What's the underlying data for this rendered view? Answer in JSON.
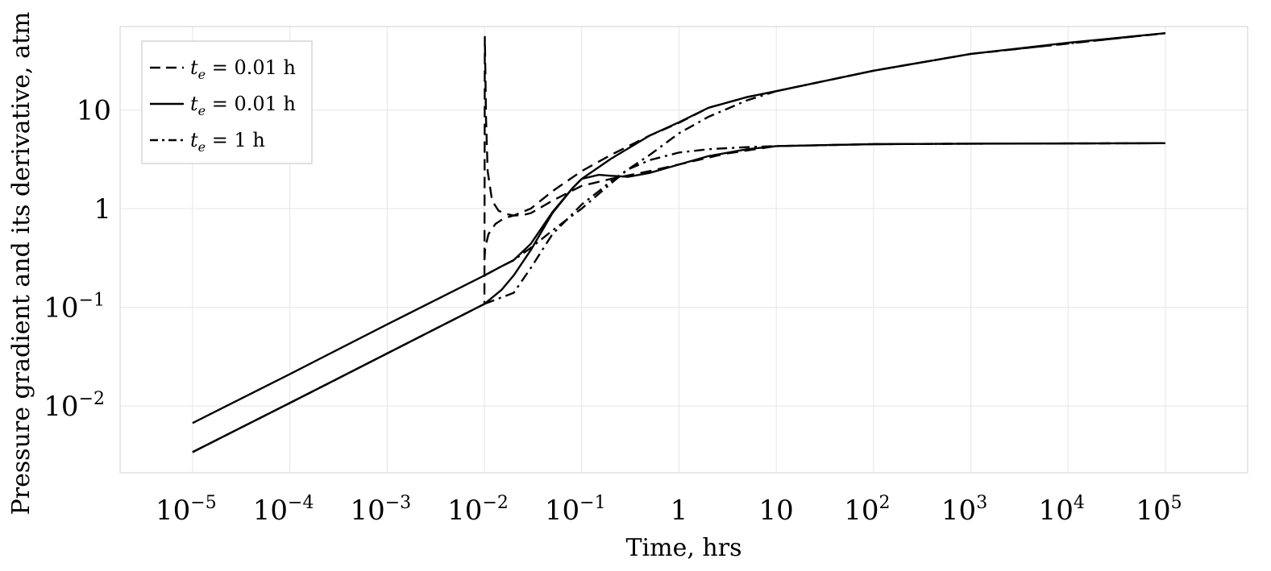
{
  "chart_data": {
    "type": "line",
    "xlabel": "Time, hrs",
    "ylabel": "Pressure gradient and its derivative, atm",
    "x_scale": "log",
    "y_scale": "log",
    "xlim": [
      1.8e-06,
      700000.0
    ],
    "ylim": [
      0.0021,
      70
    ],
    "grid": true,
    "legend_position": "top-left",
    "x_ticks": [
      {
        "value": 1e-05,
        "base": "10",
        "exp": "−5"
      },
      {
        "value": 0.0001,
        "base": "10",
        "exp": "−4"
      },
      {
        "value": 0.001,
        "base": "10",
        "exp": "−3"
      },
      {
        "value": 0.01,
        "base": "10",
        "exp": "−2"
      },
      {
        "value": 0.1,
        "base": "10",
        "exp": "−1"
      },
      {
        "value": 1,
        "base": "1",
        "exp": ""
      },
      {
        "value": 10,
        "base": "10",
        "exp": ""
      },
      {
        "value": 100,
        "base": "10",
        "exp": "2"
      },
      {
        "value": 1000,
        "base": "10",
        "exp": "3"
      },
      {
        "value": 10000,
        "base": "10",
        "exp": "4"
      },
      {
        "value": 100000,
        "base": "10",
        "exp": "5"
      }
    ],
    "y_ticks": [
      {
        "value": 0.01,
        "base": "10",
        "exp": "−2"
      },
      {
        "value": 0.1,
        "base": "10",
        "exp": "−1"
      },
      {
        "value": 1,
        "base": "1",
        "exp": ""
      },
      {
        "value": 10,
        "base": "10",
        "exp": ""
      }
    ],
    "legend": [
      {
        "style": "dashed",
        "prefix": "t",
        "sub": "e",
        "suffix": " = 0.01 h"
      },
      {
        "style": "solid",
        "prefix": "t",
        "sub": "e",
        "suffix": " = 0.01 h"
      },
      {
        "style": "dashdot",
        "prefix": "t",
        "sub": "e",
        "suffix": " = 1 h"
      }
    ],
    "series": [
      {
        "style": "solid",
        "x": [
          1e-05,
          0.0001,
          0.001,
          0.01,
          0.015,
          0.02,
          0.03,
          0.05,
          0.08,
          0.1,
          0.2,
          0.5,
          1,
          2,
          5,
          10,
          100,
          1000,
          10000,
          100000
        ],
        "y": [
          0.0067,
          0.021,
          0.067,
          0.21,
          0.26,
          0.3,
          0.44,
          0.92,
          1.6,
          2.0,
          3.2,
          5.5,
          7.5,
          10.5,
          13.5,
          15.5,
          25,
          37,
          48,
          60
        ]
      },
      {
        "style": "solid",
        "x": [
          1e-05,
          0.0001,
          0.001,
          0.01,
          0.015,
          0.02,
          0.03,
          0.05,
          0.08,
          0.1,
          0.15,
          0.2,
          0.3,
          0.5,
          1,
          2,
          5,
          10,
          100,
          1000,
          100000
        ],
        "y": [
          0.0034,
          0.0107,
          0.034,
          0.108,
          0.15,
          0.21,
          0.38,
          0.9,
          1.6,
          2.0,
          2.2,
          2.15,
          2.1,
          2.3,
          2.8,
          3.4,
          4.0,
          4.3,
          4.5,
          4.55,
          4.6
        ]
      },
      {
        "style": "dashed",
        "x": [
          1e-05,
          0.0001,
          0.001,
          0.01,
          0.0101,
          0.0102,
          0.0104,
          0.0108,
          0.012,
          0.014,
          0.017,
          0.02,
          0.025,
          0.03,
          0.05,
          0.1,
          0.2,
          0.5,
          1,
          3,
          10,
          100,
          1000,
          100000
        ],
        "y": [
          0.0034,
          0.0107,
          0.034,
          0.108,
          55,
          30,
          8,
          2.4,
          1.2,
          0.95,
          0.88,
          0.85,
          0.86,
          0.9,
          1.2,
          1.7,
          2.0,
          2.4,
          2.8,
          3.6,
          4.3,
          4.5,
          4.55,
          4.6
        ]
      },
      {
        "style": "dashed",
        "x": [
          0.01,
          0.0102,
          0.011,
          0.013,
          0.016,
          0.02,
          0.03,
          0.05,
          0.1,
          0.2,
          0.5,
          1,
          2,
          5,
          10,
          100,
          1000,
          100000
        ],
        "y": [
          0.3,
          0.4,
          0.55,
          0.7,
          0.8,
          0.85,
          1.0,
          1.5,
          2.4,
          3.5,
          5.5,
          7.4,
          10.5,
          13.5,
          15.5,
          25,
          37,
          60
        ]
      },
      {
        "style": "dashdot",
        "x": [
          0.01,
          0.02,
          0.03,
          0.05,
          0.1,
          0.15,
          0.2,
          0.3,
          0.5,
          1,
          2,
          5,
          10,
          100,
          1000,
          100000
        ],
        "y": [
          0.108,
          0.14,
          0.25,
          0.55,
          1.1,
          1.5,
          1.9,
          2.5,
          3.5,
          5.8,
          8.5,
          12.5,
          15.5,
          25,
          37,
          60
        ]
      },
      {
        "style": "dashdot",
        "x": [
          0.01,
          0.015,
          0.02,
          0.03,
          0.05,
          0.1,
          0.2,
          0.3,
          0.5,
          1,
          2,
          5,
          10,
          100,
          1000,
          100000
        ],
        "y": [
          0.21,
          0.26,
          0.3,
          0.4,
          0.6,
          1.0,
          1.8,
          2.5,
          3.1,
          3.7,
          4.0,
          4.2,
          4.3,
          4.5,
          4.55,
          4.6
        ]
      }
    ]
  }
}
